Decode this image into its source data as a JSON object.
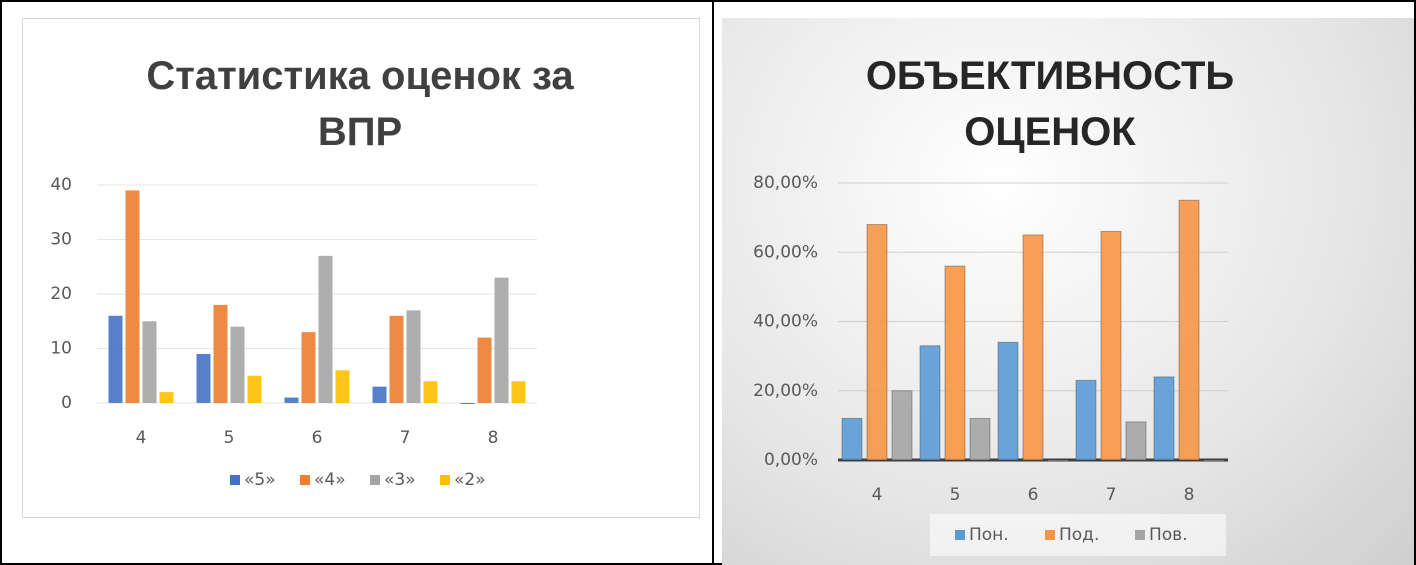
{
  "chart_data": [
    {
      "type": "bar",
      "title": "Статистика оценок за ВПР",
      "categories": [
        "4",
        "5",
        "6",
        "7",
        "8"
      ],
      "series": [
        {
          "name": "«5»",
          "color": "#4472c4",
          "values": [
            16,
            9,
            1,
            3,
            0
          ]
        },
        {
          "name": "«4»",
          "color": "#ed7d31",
          "values": [
            39,
            18,
            13,
            16,
            12
          ]
        },
        {
          "name": "«3»",
          "color": "#a5a5a5",
          "values": [
            15,
            14,
            27,
            17,
            23
          ]
        },
        {
          "name": "«2»",
          "color": "#ffc000",
          "values": [
            2,
            5,
            6,
            4,
            4
          ]
        }
      ],
      "ylim": [
        0,
        40
      ],
      "yticks": [
        0,
        10,
        20,
        30,
        40
      ],
      "grid": true,
      "legend": "bottom"
    },
    {
      "type": "bar",
      "title": "ОБЪЕКТИВНОСТЬ ОЦЕНОК",
      "categories": [
        "4",
        "5",
        "6",
        "7",
        "8"
      ],
      "series": [
        {
          "name": "Пон.",
          "color": "#5b9bd5",
          "values": [
            12,
            33,
            34,
            23,
            24
          ]
        },
        {
          "name": "Под.",
          "color": "#f79646",
          "values": [
            68,
            56,
            65,
            66,
            75
          ]
        },
        {
          "name": "Пов.",
          "color": "#a5a5a5",
          "values": [
            20,
            12,
            0,
            11,
            0
          ]
        }
      ],
      "ylim": [
        0,
        80
      ],
      "yticks": [
        {
          "value": 0,
          "label": "0,00%"
        },
        {
          "value": 20,
          "label": "20,00%"
        },
        {
          "value": 40,
          "label": "40,00%"
        },
        {
          "value": 60,
          "label": "60,00%"
        },
        {
          "value": 80,
          "label": "80,00%"
        }
      ],
      "grid": true,
      "legend": "bottom"
    }
  ]
}
